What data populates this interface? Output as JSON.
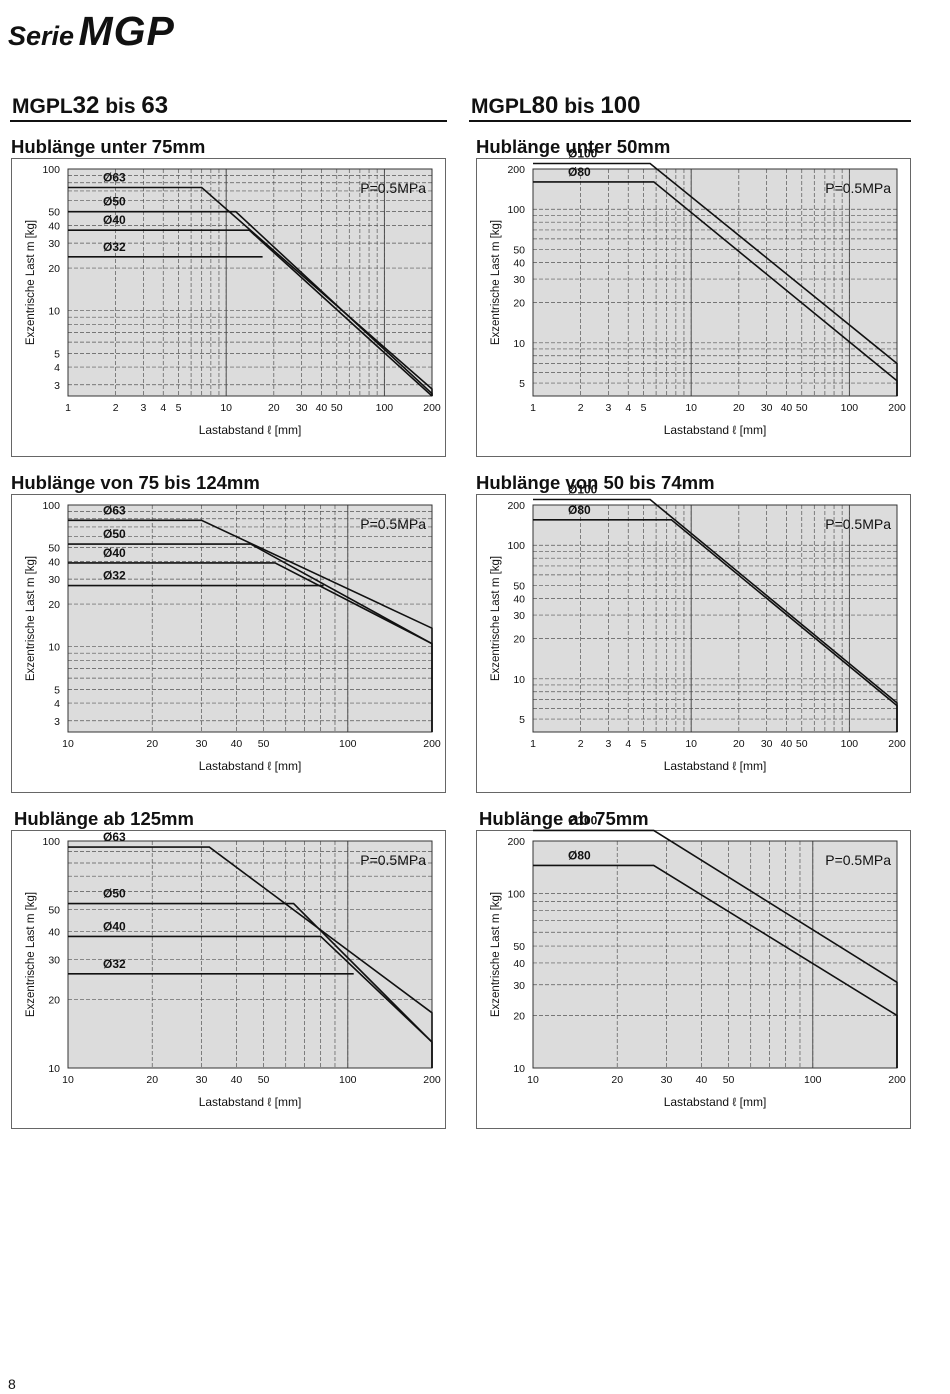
{
  "header": {
    "serie_prefix": "Serie",
    "serie_name": "MGP"
  },
  "page_number": "8",
  "sections": [
    {
      "prefix": "MGPL",
      "from": "32",
      "bis": "bis",
      "to": "63"
    },
    {
      "prefix": "MGPL",
      "from": "80",
      "bis": "bis",
      "to": "100"
    }
  ],
  "chart_data": [
    {
      "type": "line",
      "title": "Hublänge unter 75mm",
      "xlabel": "Lastabstand ℓ [mm]",
      "ylabel": "Exzentrische Last m [kg]",
      "x_scale": "log",
      "y_scale": "log",
      "xlim": [
        1,
        200
      ],
      "ylim": [
        2.5,
        100
      ],
      "xticks": [
        1,
        2,
        3,
        4,
        5,
        10,
        20,
        30,
        40,
        50,
        100,
        200
      ],
      "yticks": [
        3,
        4,
        5,
        10,
        20,
        30,
        40,
        50,
        100
      ],
      "annotation": "P=0.5MPa",
      "grid": true,
      "series": [
        {
          "name": "Ø63",
          "x": [
            1,
            7.0,
            200,
            200
          ],
          "y": [
            74,
            74,
            2.8,
            2.5
          ]
        },
        {
          "name": "Ø50",
          "x": [
            1,
            11.5,
            200,
            200
          ],
          "y": [
            50,
            50,
            2.6,
            2.5
          ]
        },
        {
          "name": "Ø40",
          "x": [
            1,
            14.0,
            200,
            200
          ],
          "y": [
            37,
            37,
            2.5,
            2.5
          ]
        },
        {
          "name": "Ø32",
          "x": [
            1,
            17.0
          ],
          "y": [
            24,
            24
          ]
        }
      ]
    },
    {
      "type": "line",
      "title": "Hublänge unter 50mm",
      "xlabel": "Lastabstand ℓ [mm]",
      "ylabel": "Exzentrische Last m [kg]",
      "x_scale": "log",
      "y_scale": "log",
      "xlim": [
        1,
        200
      ],
      "ylim": [
        4,
        200
      ],
      "xticks": [
        1,
        2,
        3,
        4,
        5,
        10,
        20,
        30,
        40,
        50,
        100,
        200
      ],
      "yticks": [
        5,
        10,
        20,
        30,
        40,
        50,
        100,
        200
      ],
      "annotation": "P=0.5MPa",
      "grid": true,
      "series": [
        {
          "name": "Ø100",
          "x": [
            1,
            5.5,
            200,
            200
          ],
          "y": [
            220,
            220,
            7.0,
            4
          ]
        },
        {
          "name": "Ø80",
          "x": [
            1,
            5.8,
            200,
            200
          ],
          "y": [
            160,
            160,
            5.2,
            4
          ]
        }
      ]
    },
    {
      "type": "line",
      "title": "Hublänge von 75 bis 124mm",
      "xlabel": "Lastabstand ℓ [mm]",
      "ylabel": "Exzentrische Last m [kg]",
      "x_scale": "log",
      "y_scale": "log",
      "xlim": [
        10,
        200
      ],
      "ylim": [
        2.5,
        100
      ],
      "xticks": [
        10,
        20,
        30,
        40,
        50,
        100,
        200
      ],
      "yticks": [
        3,
        4,
        5,
        10,
        20,
        30,
        40,
        50,
        100
      ],
      "annotation": "P=0.5MPa",
      "grid": true,
      "series": [
        {
          "name": "Ø63",
          "x": [
            10,
            30,
            200,
            200
          ],
          "y": [
            78,
            78,
            13.5,
            2.5
          ]
        },
        {
          "name": "Ø50",
          "x": [
            10,
            45,
            200,
            200
          ],
          "y": [
            53,
            53,
            10.5,
            2.5
          ]
        },
        {
          "name": "Ø40",
          "x": [
            10,
            55,
            200
          ],
          "y": [
            39,
            39,
            10.5
          ]
        },
        {
          "name": "Ø32",
          "x": [
            10,
            82
          ],
          "y": [
            27,
            27
          ]
        }
      ]
    },
    {
      "type": "line",
      "title": "Hublänge von 50 bis 74mm",
      "xlabel": "Lastabstand ℓ [mm]",
      "ylabel": "Exzentrische Last m [kg]",
      "x_scale": "log",
      "y_scale": "log",
      "xlim": [
        1,
        200
      ],
      "ylim": [
        4,
        200
      ],
      "xticks": [
        1,
        2,
        3,
        4,
        5,
        10,
        20,
        30,
        40,
        50,
        100,
        200
      ],
      "yticks": [
        5,
        10,
        20,
        30,
        40,
        50,
        100,
        200
      ],
      "annotation": "P=0.5MPa",
      "grid": true,
      "series": [
        {
          "name": "Ø100",
          "x": [
            1,
            5.5,
            200,
            200
          ],
          "y": [
            220,
            220,
            6.6,
            4
          ]
        },
        {
          "name": "Ø80",
          "x": [
            1,
            7.5,
            200,
            200
          ],
          "y": [
            155,
            155,
            6.3,
            4
          ]
        }
      ]
    },
    {
      "type": "line",
      "title": "Hublänge ab 125mm",
      "xlabel": "Lastabstand ℓ [mm]",
      "ylabel": "Exzentrische Last m [kg]",
      "x_scale": "log",
      "y_scale": "log",
      "xlim": [
        10,
        200
      ],
      "ylim": [
        10,
        100
      ],
      "xticks": [
        10,
        20,
        30,
        40,
        50,
        100,
        200
      ],
      "yticks": [
        10,
        20,
        30,
        40,
        50,
        100
      ],
      "annotation": "P=0.5MPa",
      "grid": true,
      "series": [
        {
          "name": "Ø63",
          "x": [
            10,
            32,
            200,
            200
          ],
          "y": [
            94,
            94,
            17.5,
            10
          ]
        },
        {
          "name": "Ø50",
          "x": [
            10,
            64,
            200,
            200
          ],
          "y": [
            53,
            53,
            13.0,
            10
          ]
        },
        {
          "name": "Ø40",
          "x": [
            10,
            80,
            200
          ],
          "y": [
            38,
            38,
            13.0
          ]
        },
        {
          "name": "Ø32",
          "x": [
            10,
            105
          ],
          "y": [
            26,
            26
          ]
        }
      ]
    },
    {
      "type": "line",
      "title": "Hublänge ab 75mm",
      "xlabel": "Lastabstand ℓ [mm]",
      "ylabel": "Exzentrische Last m [kg]",
      "x_scale": "log",
      "y_scale": "log",
      "xlim": [
        10,
        200
      ],
      "ylim": [
        10,
        200
      ],
      "xticks": [
        10,
        20,
        30,
        40,
        50,
        100,
        200
      ],
      "yticks": [
        10,
        20,
        30,
        40,
        50,
        100,
        200
      ],
      "annotation": "P=0.5MPa",
      "grid": true,
      "series": [
        {
          "name": "Ø100",
          "x": [
            10,
            27,
            200,
            200
          ],
          "y": [
            230,
            230,
            31,
            10
          ]
        },
        {
          "name": "Ø80",
          "x": [
            10,
            27,
            200,
            200
          ],
          "y": [
            145,
            145,
            20,
            10
          ]
        }
      ]
    }
  ]
}
